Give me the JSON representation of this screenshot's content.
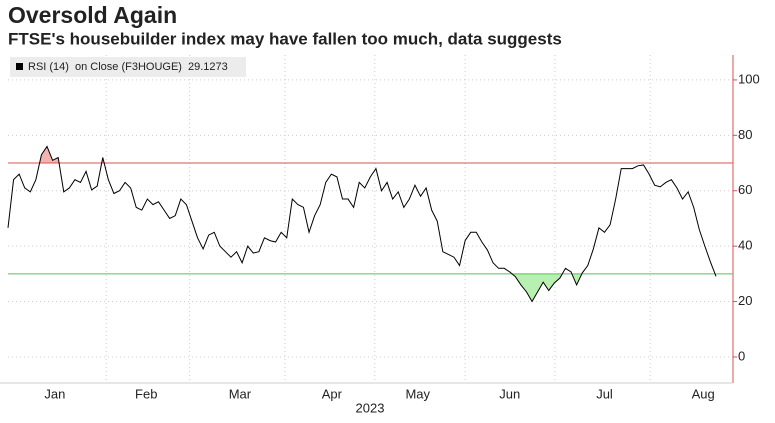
{
  "chart_data": {
    "type": "line",
    "title": "Oversold Again",
    "subtitle": "FTSE's housebuilder index may have fallen too much, data suggests",
    "legend_detail": "on Close (F3HOUGE)",
    "x_label": "2023",
    "series": [
      {
        "name": "RSI (14)",
        "color": "#000000",
        "values": [
          46.6,
          64,
          66,
          61,
          59.6,
          64,
          73,
          76,
          71,
          72,
          59.6,
          61,
          64,
          63,
          67,
          60.3,
          61.7,
          72,
          64,
          59,
          60,
          63,
          61,
          54,
          53,
          57,
          55,
          56,
          53,
          50,
          51,
          57,
          55,
          49,
          43,
          39,
          44,
          45,
          40,
          38,
          36,
          38,
          34,
          40,
          37.5,
          38,
          43,
          42,
          41.5,
          45,
          43,
          57,
          55,
          54,
          45,
          51,
          55,
          63,
          66,
          65,
          57,
          57,
          54,
          63,
          61,
          65,
          68,
          60,
          63,
          57,
          59.6,
          54,
          57,
          62,
          58,
          61,
          53,
          49,
          38,
          37,
          36,
          33,
          42,
          45,
          45,
          41.5,
          38.6,
          34,
          32,
          32,
          30.7,
          29,
          26,
          23.5,
          20,
          23.5,
          27,
          24,
          26.7,
          28.5,
          32,
          30.7,
          26,
          30.3,
          33,
          39,
          46.6,
          45,
          47.7,
          57,
          68,
          68,
          68,
          69,
          69.3,
          66,
          62,
          61.4,
          63,
          64,
          61,
          57,
          59.6,
          54,
          46,
          40,
          34.3,
          29.1273
        ]
      }
    ],
    "xlim": [
      0,
      127
    ],
    "xticks": [
      {
        "value": 8.4,
        "label": "Jan"
      },
      {
        "value": 24.8,
        "label": "Feb"
      },
      {
        "value": 41.6,
        "label": "Mar"
      },
      {
        "value": 58.1,
        "label": "Apr"
      },
      {
        "value": 73.5,
        "label": "May"
      },
      {
        "value": 90,
        "label": "Jun"
      },
      {
        "value": 107,
        "label": "Jul"
      },
      {
        "value": 124.7,
        "label": "Aug"
      }
    ],
    "xgrid": [
      17.6,
      32.6,
      49.7,
      65.8,
      82,
      98.1,
      115.2
    ],
    "ylim": [
      -9.4,
      109
    ],
    "yticks": [
      0,
      20,
      40,
      60,
      80,
      100
    ],
    "overbought": 70,
    "overbought_color": "#d9534f",
    "overbought_fill": "#f4b3b3",
    "oversold": 30,
    "oversold_color": "#5cbf5c",
    "oversold_fill": "#b7f0b0",
    "grid": true
  }
}
